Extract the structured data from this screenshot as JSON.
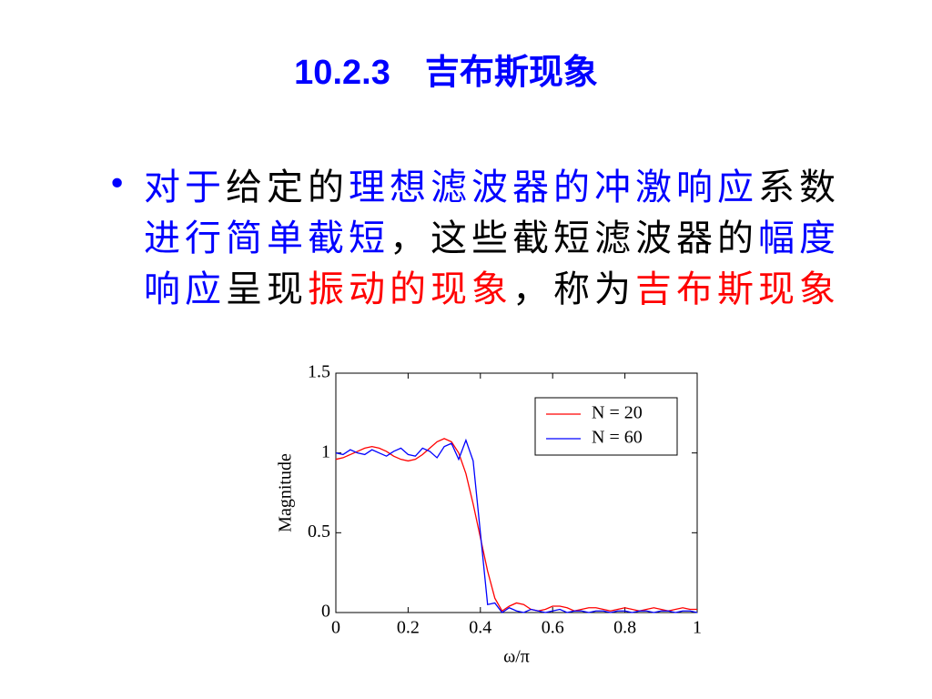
{
  "title": "10.2.3　吉布斯现象",
  "bullet": {
    "marker": "•",
    "segments": [
      {
        "text": "对于",
        "color": "#0000ff"
      },
      {
        "text": "给定的",
        "color": "#000000"
      },
      {
        "text": "理想滤波器的冲激响应",
        "color": "#0000ff"
      },
      {
        "text": "系数",
        "color": "#000000"
      },
      {
        "text": "进行简单截短",
        "color": "#0000ff"
      },
      {
        "text": "，这些截短滤波器的",
        "color": "#000000"
      },
      {
        "text": "幅度响应",
        "color": "#0000ff"
      },
      {
        "text": "呈现",
        "color": "#000000"
      },
      {
        "text": "振动的现象",
        "color": "#ff0000"
      },
      {
        "text": "，称为",
        "color": "#000000"
      },
      {
        "text": "吉布斯现象",
        "color": "#ff0000"
      }
    ]
  },
  "chart_data": {
    "type": "line",
    "x_label": "ω/π",
    "y_label": "Magnitude",
    "x": [
      0,
      0.02,
      0.04,
      0.06,
      0.08,
      0.1,
      0.12,
      0.14,
      0.16,
      0.18,
      0.2,
      0.22,
      0.24,
      0.26,
      0.28,
      0.3,
      0.32,
      0.34,
      0.36,
      0.38,
      0.4,
      0.42,
      0.44,
      0.46,
      0.48,
      0.5,
      0.52,
      0.54,
      0.56,
      0.58,
      0.6,
      0.62,
      0.64,
      0.66,
      0.68,
      0.7,
      0.72,
      0.74,
      0.76,
      0.78,
      0.8,
      0.82,
      0.84,
      0.86,
      0.88,
      0.9,
      0.92,
      0.94,
      0.96,
      0.98,
      1
    ],
    "series": [
      {
        "name": "N = 20",
        "color": "#ff0000",
        "values": [
          0.96,
          0.97,
          0.99,
          1.01,
          1.03,
          1.04,
          1.03,
          1.01,
          0.98,
          0.96,
          0.95,
          0.96,
          0.99,
          1.03,
          1.07,
          1.09,
          1.07,
          1.0,
          0.87,
          0.68,
          0.47,
          0.26,
          0.09,
          0.01,
          0.04,
          0.06,
          0.05,
          0.02,
          0.01,
          0.02,
          0.04,
          0.04,
          0.03,
          0.01,
          0.02,
          0.03,
          0.03,
          0.02,
          0.01,
          0.02,
          0.03,
          0.02,
          0.01,
          0.02,
          0.03,
          0.02,
          0.01,
          0.02,
          0.03,
          0.02,
          0.02
        ]
      },
      {
        "name": "N = 60",
        "color": "#0000ff",
        "values": [
          1.0,
          0.99,
          1.02,
          1.0,
          0.99,
          1.02,
          1.0,
          0.98,
          1.01,
          1.03,
          0.99,
          0.98,
          1.03,
          1.01,
          0.97,
          1.04,
          1.06,
          0.96,
          1.08,
          0.95,
          0.5,
          0.05,
          0.06,
          0.0,
          0.03,
          0.01,
          0.0,
          0.02,
          0.01,
          0.0,
          0.01,
          0.02,
          0.0,
          0.01,
          0.01,
          0.0,
          0.01,
          0.01,
          0.0,
          0.01,
          0.01,
          0.0,
          0.01,
          0.01,
          0.0,
          0.01,
          0.01,
          0.0,
          0.01,
          0.01,
          0.0
        ]
      }
    ],
    "xlim": [
      0,
      1
    ],
    "ylim": [
      0,
      1.5
    ],
    "xticks": [
      0,
      0.2,
      0.4,
      0.6,
      0.8,
      1
    ],
    "yticks": [
      0,
      0.5,
      1,
      1.5
    ],
    "legend": "upper right"
  }
}
